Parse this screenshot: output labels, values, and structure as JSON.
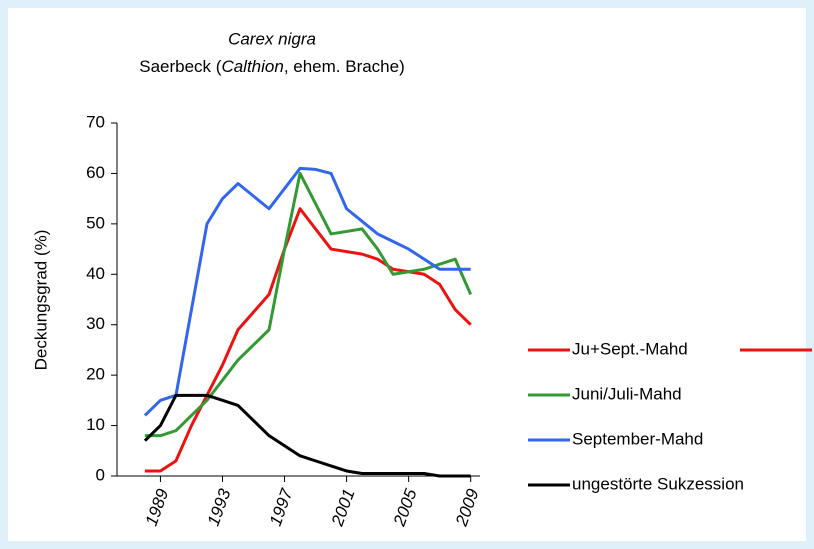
{
  "chart_data": {
    "type": "line",
    "title": "Carex nigra",
    "subtitle": [
      "Saerbeck (",
      "Calthion",
      ", ehem. Brache)"
    ],
    "ylabel": "Deckungsgrad (%)",
    "x": [
      1988,
      1989,
      1990,
      1991,
      1992,
      1993,
      1994,
      1995,
      1996,
      1997,
      1998,
      1999,
      2000,
      2001,
      2002,
      2003,
      2004,
      2005,
      2006,
      2007,
      2008,
      2009
    ],
    "xlim": [
      1986.2,
      2009.6
    ],
    "xticks": [
      1989,
      1993,
      1997,
      2001,
      2005,
      2009
    ],
    "ylim": [
      0,
      70
    ],
    "yticks": [
      0,
      10,
      20,
      30,
      40,
      50,
      60,
      70
    ],
    "legend": "right",
    "series": [
      {
        "name": "Ju+Sept.-Mahd",
        "color": "#ee1111",
        "values": [
          1,
          1,
          3,
          10,
          16,
          22,
          29,
          32.5,
          36,
          45,
          53,
          49,
          45,
          44.5,
          44,
          43,
          41,
          40.5,
          40,
          38,
          33,
          30
        ]
      },
      {
        "name": "Juni/Juli-Mahd",
        "color": "#339933",
        "values": [
          8,
          8,
          9,
          12,
          15,
          19,
          23,
          26,
          29,
          45,
          60,
          54,
          48,
          48.5,
          49,
          45,
          40,
          40.5,
          41,
          42,
          43,
          36
        ]
      },
      {
        "name": "September-Mahd",
        "color": "#3366ee",
        "values": [
          12,
          15,
          16,
          33,
          50,
          55,
          58,
          55.5,
          53,
          57,
          61,
          60.8,
          60,
          53,
          50.5,
          48,
          46.5,
          45,
          43,
          41,
          41,
          41
        ]
      },
      {
        "name": "ungestörte Sukzession",
        "color": "#000000",
        "values": [
          7,
          10,
          16,
          16,
          16,
          15,
          14,
          11,
          8,
          6,
          4,
          3,
          2,
          1,
          0.5,
          0.5,
          0.5,
          0.5,
          0.5,
          0,
          0,
          0
        ]
      }
    ]
  }
}
